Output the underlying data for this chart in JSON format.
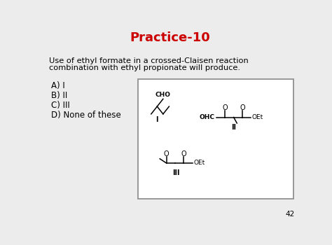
{
  "title": "Practice-10",
  "title_color": "#cc0000",
  "title_fontsize": 13,
  "background_color": "#ececec",
  "question_text_line1": "Use of ethyl formate in a crossed-Claisen reaction",
  "question_text_line2": "combination with ethyl propionate will produce.",
  "answer_choices": [
    "A) I",
    "B) II",
    "C) III",
    "D) None of these"
  ],
  "page_number": "42",
  "struct_label_I": "I",
  "struct_label_II": "II",
  "struct_label_III": "III"
}
